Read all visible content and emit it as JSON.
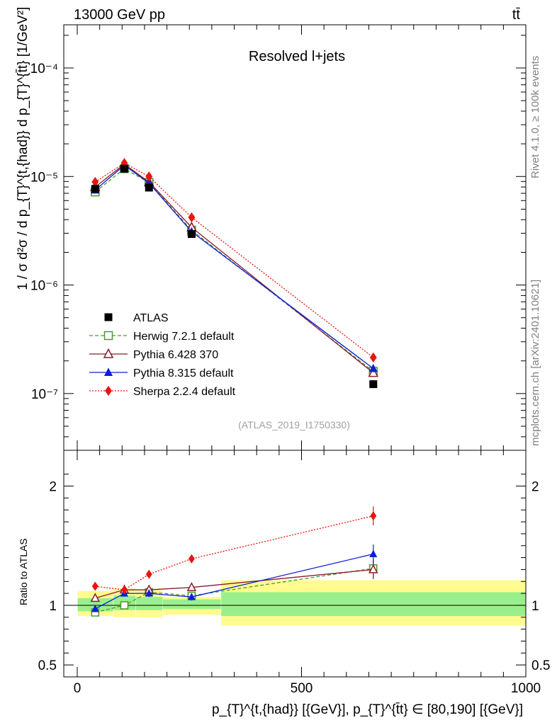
{
  "header": {
    "energy_label": "13000 GeV pp",
    "process_label": "tt̄"
  },
  "side_labels": {
    "rivet": "Rivet 4.1.0, ≥ 100k events",
    "source": "mcplots.cern.ch [arXiv:2401.10621]"
  },
  "chart_data": [
    {
      "type": "line",
      "panel": "main",
      "title": "Resolved l+jets",
      "analysis_tag": "(ATLAS_2019_I1750330)",
      "yscale": "log",
      "ylim": [
        3e-08,
        0.00025
      ],
      "xlim": [
        -30,
        1000
      ],
      "ylabel": "1 / σ d²σ / d p_{T}^{t,{had}} d p_{T}^{t̄t} [1/GeV²]",
      "ytick_labels": [
        "10⁻⁷",
        "10⁻⁶",
        "10⁻⁵",
        "10⁻⁴"
      ],
      "x": [
        40,
        105,
        160,
        255,
        660
      ],
      "series": [
        {
          "name": "ATLAS",
          "color": "#000000",
          "marker": "square-filled",
          "line": "none",
          "values": [
            7.7e-06,
            1.18e-05,
            7.9e-06,
            2.95e-06,
            1.22e-07
          ]
        },
        {
          "name": "Herwig 7.2.1 default",
          "color": "#4a9a2a",
          "marker": "square-open",
          "line": "dashed",
          "values": [
            7.2e-06,
            1.18e-05,
            8.8e-06,
            3.2e-06,
            1.6e-07
          ]
        },
        {
          "name": "Pythia 6.428 370",
          "color": "#8b1a2b",
          "marker": "triangle-open",
          "line": "solid",
          "values": [
            8e-06,
            1.3e-05,
            8.9e-06,
            3.4e-06,
            1.55e-07
          ]
        },
        {
          "name": "Pythia 8.315 default",
          "color": "#0a1fd6",
          "marker": "triangle-filled",
          "line": "solid",
          "values": [
            7.5e-06,
            1.27e-05,
            8.7e-06,
            3.1e-06,
            1.7e-07
          ]
        },
        {
          "name": "Sherpa 2.2.4 default",
          "color": "#e8150f",
          "marker": "diamond-filled",
          "line": "dotted",
          "values": [
            8.9e-06,
            1.33e-05,
            1e-05,
            4.2e-06,
            2.15e-07
          ]
        }
      ]
    },
    {
      "type": "line",
      "panel": "ratio",
      "ylabel": "Ratio to ATLAS",
      "ylim": [
        0.4,
        2.3
      ],
      "xlim": [
        -30,
        1000
      ],
      "ytick_labels": [
        "0.5",
        "1",
        "2"
      ],
      "xtick_labels": [
        "0",
        "500",
        "1000"
      ],
      "xlabel": "p_{T}^{t,{had}} [{GeV}], p_{T}^{t̄t} ∈ [80,190] [{GeV}]",
      "bands": [
        {
          "x0": 0,
          "x1": 80,
          "green": [
            0.95,
            1.06
          ],
          "yellow": [
            0.91,
            1.12
          ]
        },
        {
          "x0": 80,
          "x1": 130,
          "green": [
            0.96,
            1.08
          ],
          "yellow": [
            0.9,
            1.14
          ]
        },
        {
          "x0": 130,
          "x1": 190,
          "green": [
            0.96,
            1.07
          ],
          "yellow": [
            0.9,
            1.13
          ]
        },
        {
          "x0": 190,
          "x1": 320,
          "green": [
            0.97,
            1.05
          ],
          "yellow": [
            0.92,
            1.07
          ]
        },
        {
          "x0": 320,
          "x1": 1000,
          "green": [
            0.91,
            1.11
          ],
          "yellow": [
            0.83,
            1.21
          ]
        }
      ],
      "x": [
        40,
        105,
        160,
        255,
        660
      ],
      "series": [
        {
          "name": "Herwig 7.2.1 default",
          "values": [
            0.94,
            1.0,
            1.11,
            1.08,
            1.31
          ]
        },
        {
          "name": "Pythia 6.428 370",
          "values": [
            1.06,
            1.13,
            1.13,
            1.15,
            1.3
          ]
        },
        {
          "name": "Pythia 8.315 default",
          "values": [
            0.97,
            1.1,
            1.1,
            1.07,
            1.43
          ]
        },
        {
          "name": "Sherpa 2.2.4 default",
          "values": [
            1.16,
            1.13,
            1.26,
            1.39,
            1.75
          ]
        }
      ],
      "errors": [
        0.02,
        0.02,
        0.03,
        0.03,
        0.08
      ]
    }
  ]
}
